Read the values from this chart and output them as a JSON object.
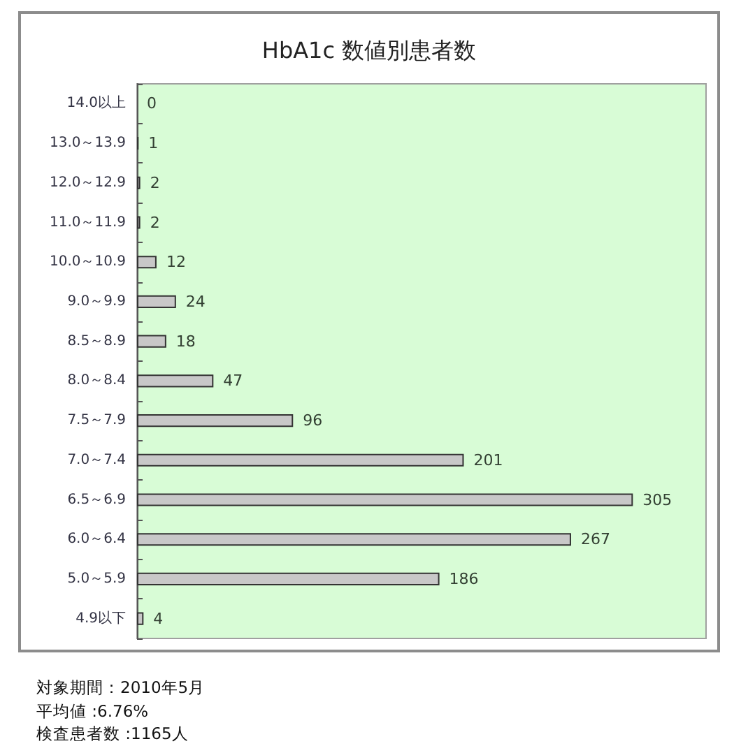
{
  "chart_data": {
    "type": "bar",
    "orientation": "horizontal",
    "title": "HbA1c 数値別患者数",
    "categories": [
      "14.0以上",
      "13.0～13.9",
      "12.0～12.9",
      "11.0～11.9",
      "10.0～10.9",
      "9.0～9.9",
      "8.5～8.9",
      "8.0～8.4",
      "7.5～7.9",
      "7.0～7.4",
      "6.5～6.9",
      "6.0～6.4",
      "5.0～5.9",
      "4.9以下"
    ],
    "values": [
      0,
      1,
      2,
      2,
      12,
      24,
      18,
      47,
      96,
      201,
      305,
      267,
      186,
      4
    ],
    "color": "#c8c8c8",
    "xlim": [
      0,
      350
    ],
    "data_labels": true,
    "tick_labels": "y",
    "annotations": [
      "対象期間：2010年5月",
      "平均値 :6.76%",
      "検査患者数 :1165人"
    ]
  }
}
